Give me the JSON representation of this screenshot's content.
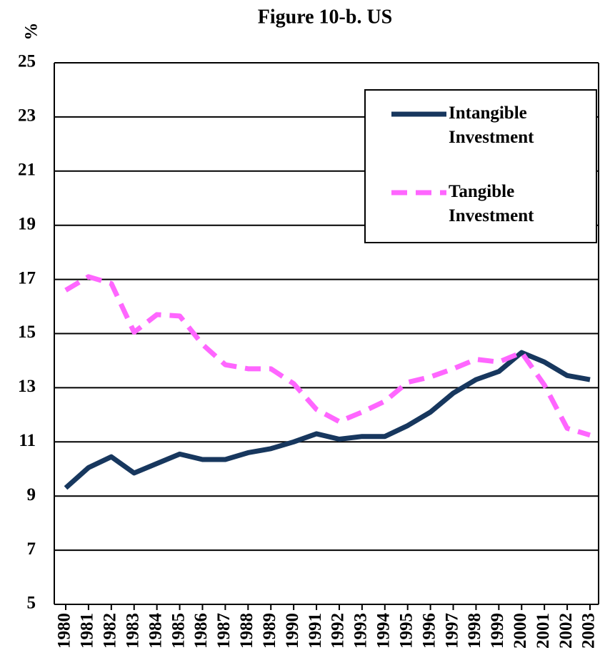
{
  "chart_data": {
    "type": "line",
    "title": "Figure 10-b. US",
    "y_label": "%",
    "categories": [
      "1980",
      "1981",
      "1982",
      "1983",
      "1984",
      "1985",
      "1986",
      "1987",
      "1988",
      "1989",
      "1990",
      "1991",
      "1992",
      "1993",
      "1994",
      "1995",
      "1996",
      "1997",
      "1998",
      "1999",
      "2000",
      "2001",
      "2002",
      "2003"
    ],
    "series": [
      {
        "name": "Intangible Investment",
        "color": "#17375e",
        "dash": false,
        "values": [
          9.3,
          10.05,
          10.45,
          9.85,
          10.2,
          10.55,
          10.35,
          10.35,
          10.6,
          10.75,
          11.0,
          11.3,
          11.1,
          11.2,
          11.2,
          11.6,
          12.1,
          12.8,
          13.3,
          13.6,
          14.3,
          13.95,
          13.45,
          13.3
        ]
      },
      {
        "name": "Tangible Investment",
        "color": "#ff66ff",
        "dash": true,
        "values": [
          16.6,
          17.1,
          16.85,
          15.05,
          15.7,
          15.65,
          14.6,
          13.85,
          13.7,
          13.7,
          13.15,
          12.2,
          11.75,
          12.1,
          12.5,
          13.2,
          13.4,
          13.7,
          14.05,
          13.95,
          14.3,
          13.1,
          11.5,
          11.25
        ]
      }
    ],
    "ylim": [
      5,
      25
    ],
    "yticks": [
      5,
      7,
      9,
      11,
      13,
      15,
      17,
      19,
      21,
      23,
      25
    ],
    "grid": true,
    "legend": "upper right"
  }
}
